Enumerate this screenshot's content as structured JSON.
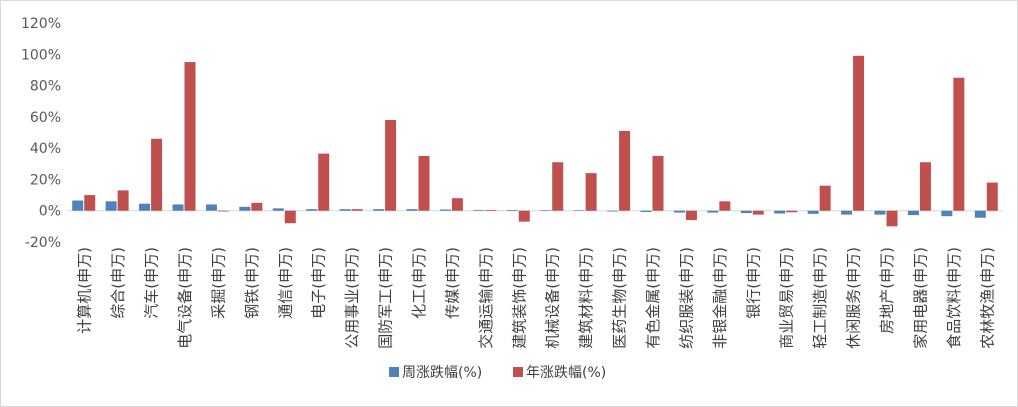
{
  "chart_data": {
    "type": "bar",
    "title": "",
    "xlabel": "",
    "ylabel": "",
    "ylim": [
      -20,
      120
    ],
    "yticks": [
      -20,
      0,
      20,
      40,
      60,
      80,
      100,
      120
    ],
    "ytick_labels": [
      "-20%",
      "0%",
      "20%",
      "40%",
      "60%",
      "80%",
      "100%",
      "120%"
    ],
    "grid": false,
    "legend_position": "bottom",
    "categories": [
      "计算机(申万)",
      "综合(申万)",
      "汽车(申万)",
      "电气设备(申万)",
      "采掘(申万)",
      "钢铁(申万)",
      "通信(申万)",
      "电子(申万)",
      "公用事业(申万)",
      "国防军工(申万)",
      "化工(申万)",
      "传媒(申万)",
      "交通运输(申万)",
      "建筑装饰(申万)",
      "机械设备(申万)",
      "建筑材料(申万)",
      "医药生物(申万)",
      "有色金属(申万)",
      "纺织服装(申万)",
      "非银金融(申万)",
      "银行(申万)",
      "商业贸易(申万)",
      "轻工制造(申万)",
      "休闲服务(申万)",
      "房地产(申万)",
      "家用电器(申万)",
      "食品饮料(申万)",
      "农林牧渔(申万)"
    ],
    "series": [
      {
        "name": "周涨跌幅(%)",
        "color": "#4F81BD",
        "values": [
          6.5,
          6,
          4.5,
          4,
          4,
          2.5,
          1.5,
          1,
          1,
          1,
          1,
          0.8,
          0.5,
          0.5,
          0.3,
          0.2,
          -0.5,
          -0.8,
          -1.2,
          -1.2,
          -1.5,
          -1.8,
          -2,
          -2.5,
          -2.5,
          -2.8,
          -3.5,
          -4.5
        ]
      },
      {
        "name": "年涨跌幅(%)",
        "color": "#C0504D",
        "values": [
          10,
          13,
          46,
          95,
          -0.5,
          5,
          -8,
          36.5,
          1,
          58,
          35,
          8,
          0.5,
          -7,
          31,
          24,
          51,
          35,
          -6,
          6,
          -2.5,
          -1,
          16,
          99,
          -10,
          31,
          85,
          18
        ]
      }
    ]
  }
}
